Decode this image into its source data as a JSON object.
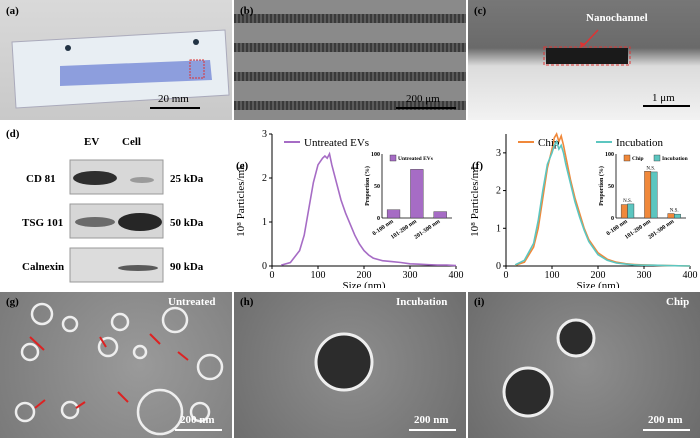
{
  "panels": {
    "a": {
      "label": "(a)",
      "scale": "20 mm"
    },
    "b": {
      "label": "(b)",
      "scale": "200 μm"
    },
    "c": {
      "label": "(c)",
      "scale": "1 μm",
      "annotation": "Nanochannel"
    },
    "d": {
      "label": "(d)",
      "col_headers": [
        "EV",
        "Cell"
      ],
      "rows": [
        {
          "name": "CD 81",
          "kda": "25 kDa"
        },
        {
          "name": "TSG 101",
          "kda": "50 kDa"
        },
        {
          "name": "Calnexin",
          "kda": "90 kDa"
        }
      ]
    },
    "g": {
      "label": "(g)",
      "tag": "Untreated",
      "scale": "200 nm"
    },
    "h": {
      "label": "(h)",
      "tag": "Incubation",
      "scale": "200 nm"
    },
    "i": {
      "label": "(i)",
      "tag": "Chip",
      "scale": "200 nm"
    }
  },
  "colors": {
    "purple": "#a66cc5",
    "orange": "#f0883a",
    "teal": "#5cc6c0"
  },
  "chart_data": [
    {
      "panel": "(e)",
      "type": "line",
      "xlabel": "Size (nm)",
      "ylabel": "10⁸ Particles/mL",
      "xlim": [
        0,
        400
      ],
      "ylim": [
        0,
        3
      ],
      "xticks": [
        0,
        100,
        200,
        300,
        400
      ],
      "yticks": [
        0,
        1,
        2,
        3
      ],
      "series": [
        {
          "name": "Untreated EVs",
          "color": "#a66cc5",
          "x": [
            20,
            40,
            60,
            70,
            80,
            90,
            100,
            110,
            115,
            120,
            125,
            130,
            140,
            150,
            160,
            170,
            180,
            190,
            200,
            210,
            220,
            240,
            260,
            280,
            300,
            320,
            340,
            360,
            380,
            400
          ],
          "y": [
            0.02,
            0.08,
            0.35,
            0.7,
            1.3,
            1.9,
            2.3,
            2.45,
            2.5,
            2.45,
            2.55,
            2.3,
            1.9,
            1.5,
            1.2,
            0.95,
            0.7,
            0.5,
            0.35,
            0.25,
            0.18,
            0.12,
            0.1,
            0.08,
            0.05,
            0.04,
            0.03,
            0.02,
            0.02,
            0.01
          ]
        }
      ],
      "inset": {
        "type": "bar",
        "ylabel": "Proportion (%)",
        "ylim": [
          0,
          100
        ],
        "yticks": [
          0,
          50,
          100
        ],
        "categories": [
          "0-100 nm",
          "101-200 nm",
          "201-300 nm"
        ],
        "series": [
          {
            "name": "Untreated EVs",
            "color": "#a66cc5",
            "values": [
              13,
              76,
              10
            ]
          }
        ]
      }
    },
    {
      "panel": "(f)",
      "type": "line",
      "xlabel": "Size (nm)",
      "ylabel": "10⁸ Particles/mL",
      "xlim": [
        0,
        400
      ],
      "ylim": [
        0,
        3.5
      ],
      "xticks": [
        0,
        100,
        200,
        300,
        400
      ],
      "yticks": [
        0,
        1,
        2,
        3
      ],
      "series": [
        {
          "name": "Chip",
          "color": "#f0883a",
          "x": [
            20,
            40,
            60,
            70,
            80,
            90,
            100,
            105,
            110,
            115,
            120,
            125,
            130,
            140,
            150,
            160,
            170,
            180,
            200,
            220,
            240,
            260,
            280,
            300,
            320,
            350,
            400
          ],
          "y": [
            0.02,
            0.1,
            0.5,
            1.0,
            1.8,
            2.6,
            3.1,
            3.4,
            3.5,
            3.3,
            3.45,
            3.2,
            2.9,
            2.3,
            1.8,
            1.4,
            1.0,
            0.7,
            0.35,
            0.18,
            0.1,
            0.06,
            0.04,
            0.03,
            0.02,
            0.01,
            0.0
          ]
        },
        {
          "name": "Incubation",
          "color": "#5cc6c0",
          "x": [
            20,
            40,
            60,
            70,
            80,
            90,
            100,
            105,
            110,
            115,
            120,
            125,
            130,
            140,
            150,
            160,
            170,
            180,
            200,
            220,
            240,
            260,
            280,
            300,
            320,
            350,
            400
          ],
          "y": [
            0.03,
            0.15,
            0.6,
            1.2,
            2.0,
            2.7,
            3.0,
            3.2,
            3.3,
            3.1,
            3.2,
            3.0,
            2.7,
            2.2,
            1.7,
            1.3,
            0.95,
            0.65,
            0.3,
            0.15,
            0.08,
            0.05,
            0.03,
            0.02,
            0.02,
            0.01,
            0.0
          ]
        }
      ],
      "inset": {
        "type": "bar",
        "ylabel": "Proportion (%)",
        "ylim": [
          0,
          100
        ],
        "yticks": [
          0,
          50,
          100
        ],
        "categories": [
          "0-100 nm",
          "101-200 nm",
          "201-300 nm"
        ],
        "annotations": [
          "N.S.",
          "N.S.",
          "N.S."
        ],
        "series": [
          {
            "name": "Chip",
            "color": "#f0883a",
            "values": [
              21,
              73,
              7
            ]
          },
          {
            "name": "Incubation",
            "color": "#5cc6c0",
            "values": [
              22,
              72,
              6
            ]
          }
        ]
      }
    }
  ]
}
